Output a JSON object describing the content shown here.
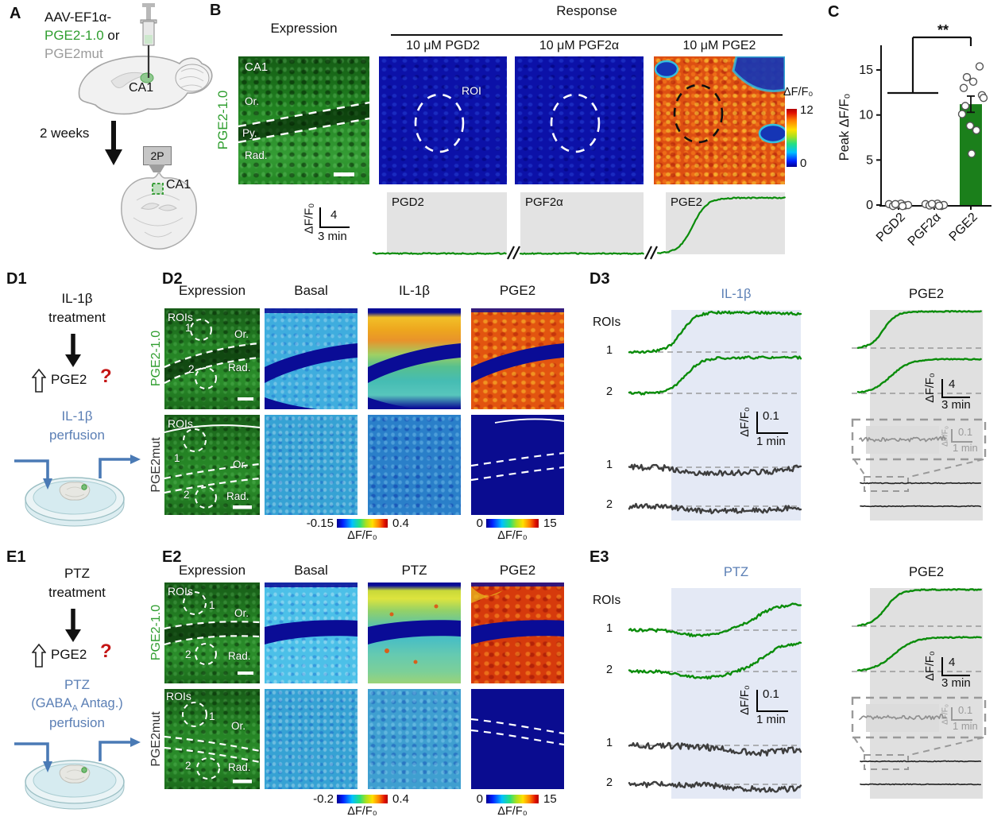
{
  "colors": {
    "sensor_green": "#2f9e2f",
    "trace_green": "#0a8c0a",
    "mut_gray": "#8f8f8f",
    "blue_label": "#5b7fb5",
    "question_red": "#c41414",
    "bar_green": "#1b7f1b",
    "stim_blue": "#e4e9f5",
    "stim_gray": "#e0e0e0",
    "navy": "#0a0c96"
  },
  "panel_a": {
    "label": "A",
    "line1": "AAV-EF1α-",
    "line2_sensor": "PGE2-1.0",
    "line2_or": " or",
    "line3": "PGE2mut",
    "ca1_injection": "CA1",
    "interval": "2 weeks",
    "objective": "2P",
    "ca1_imaging": "CA1"
  },
  "panel_b": {
    "label": "B",
    "expression_header": "Expression",
    "response_header": "Response",
    "drug_cols": [
      "10 μM PGD2",
      "10 μM PGF2α",
      "10 μM PGE2"
    ],
    "sensor_label": "PGE2-1.0",
    "region": "CA1",
    "or": "Or.",
    "py": "Py.",
    "rad": "Rad.",
    "roi": "ROI",
    "cb_label": "ΔF/F₀",
    "cb_max": "12",
    "cb_min": "0",
    "trace1": "PGD2",
    "trace2": "PGF2α",
    "trace3": "PGE2",
    "sb_axis": "ΔF/F₀",
    "sb_v": "4",
    "sb_h": "3 min"
  },
  "panel_c": {
    "label": "C"
  },
  "chart_data": {
    "type": "bar",
    "title": "",
    "ylabel": "Peak ΔF/F₀",
    "xlabel": "",
    "categories": [
      "PGD2",
      "PGF2α",
      "PGE2"
    ],
    "values": [
      0.05,
      0.05,
      11.2
    ],
    "errors": [
      0.1,
      0.1,
      0.9
    ],
    "yticks": [
      0,
      5,
      10,
      15
    ],
    "ylim": [
      0,
      18
    ],
    "grid": false,
    "legend": null,
    "scatter": [
      [
        0.1,
        -0.1,
        0.05,
        0.15,
        -0.05,
        0,
        0.1,
        -0.12
      ],
      [
        0.1,
        -0.05,
        0.05,
        0.15,
        -0.1,
        0,
        0.12,
        -0.08
      ],
      [
        15.4,
        14.2,
        13.7,
        13.0,
        12.2,
        11.9,
        11.0,
        10.1,
        8.8,
        8.3,
        5.7
      ]
    ],
    "significance": {
      "label": "**",
      "compares": "PGD2+PGF2α vs PGE2"
    }
  },
  "panel_d1": {
    "label": "D1",
    "treat1": "IL-1β",
    "treat2": "treatment",
    "up_pge2": "PGE2",
    "question": "?",
    "perf1": "IL-1β",
    "perf2": "perfusion"
  },
  "panel_d2": {
    "label": "D2",
    "col1": "Expression",
    "col2": "Basal",
    "col3": "IL-1β",
    "col4": "PGE2",
    "row1": "PGE2-1.0",
    "row2": "PGE2mut",
    "rois": "ROIs",
    "r1": "1",
    "r2": "2",
    "or": "Or.",
    "rad": "Rad.",
    "cb1_min": "-0.15",
    "cb1_max": "0.4",
    "cb1_label": "ΔF/F₀",
    "cb2_min": "0",
    "cb2_max": "15",
    "cb2_label": "ΔF/F₀"
  },
  "panel_d3": {
    "label": "D3",
    "stim": "IL-1β",
    "drug": "PGE2",
    "rois": "ROIs",
    "g1": "1",
    "g2": "2",
    "m1": "1",
    "m2": "2",
    "s_axis": "ΔF/F₀",
    "s_v": "0.1",
    "s_h": "1 min",
    "d_axis": "ΔF/F₀",
    "d_v": "4",
    "d_h": "3 min",
    "i_axis": "ΔF/F₀",
    "i_v": "0.1",
    "i_h": "1 min"
  },
  "panel_e1": {
    "label": "E1",
    "treat1": "PTZ",
    "treat2": "treatment",
    "up_pge2": "PGE2",
    "question": "?",
    "perf1": "PTZ",
    "perf2_pre": "(GABA",
    "perf2_sub": "A",
    "perf2_post": " Antag.)",
    "perf3": "perfusion"
  },
  "panel_e2": {
    "label": "E2",
    "col1": "Expression",
    "col2": "Basal",
    "col3": "PTZ",
    "col4": "PGE2",
    "row1": "PGE2-1.0",
    "row2": "PGE2mut",
    "rois": "ROIs",
    "r1": "1",
    "r2": "2",
    "or": "Or.",
    "rad": "Rad.",
    "cb1_min": "-0.2",
    "cb1_max": "0.4",
    "cb1_label": "ΔF/F₀",
    "cb2_min": "0",
    "cb2_max": "15",
    "cb2_label": "ΔF/F₀"
  },
  "panel_e3": {
    "label": "E3",
    "stim": "PTZ",
    "drug": "PGE2",
    "rois": "ROIs",
    "g1": "1",
    "g2": "2",
    "m1": "1",
    "m2": "2",
    "s_axis": "ΔF/F₀",
    "s_v": "0.1",
    "s_h": "1 min",
    "d_axis": "ΔF/F₀",
    "d_v": "4",
    "d_h": "3 min",
    "i_axis": "ΔF/F₀",
    "i_v": "0.1",
    "i_h": "1 min"
  }
}
